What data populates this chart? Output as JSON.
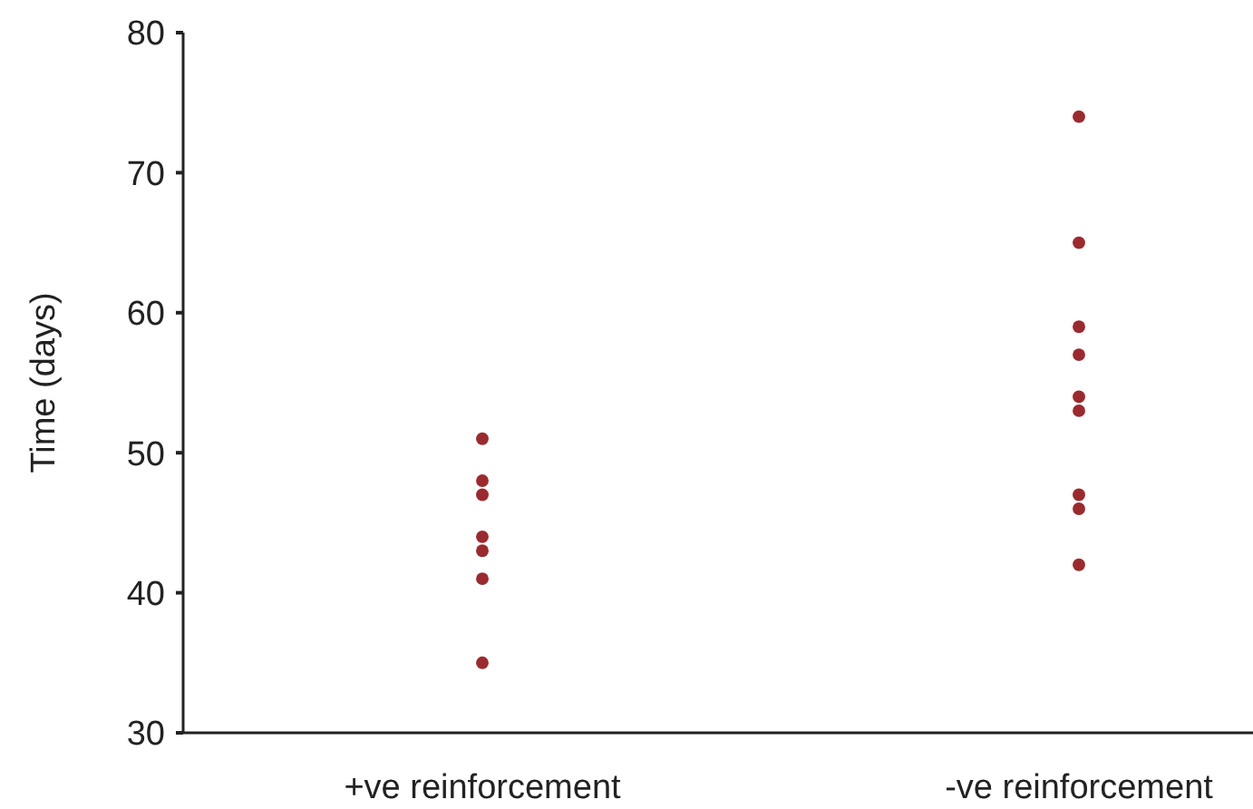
{
  "chart_data": {
    "type": "scatter",
    "ylabel": "Time (days)",
    "categories": [
      "+ve reinforcement",
      "-ve reinforcement"
    ],
    "series": [
      {
        "color": "#9b2a2e",
        "x": [
          "+ve reinforcement",
          "+ve reinforcement",
          "+ve reinforcement",
          "+ve reinforcement",
          "+ve reinforcement",
          "+ve reinforcement",
          "+ve reinforcement",
          "-ve reinforcement",
          "-ve reinforcement",
          "-ve reinforcement",
          "-ve reinforcement",
          "-ve reinforcement",
          "-ve reinforcement",
          "-ve reinforcement",
          "-ve reinforcement",
          "-ve reinforcement"
        ],
        "values": [
          51,
          48,
          47,
          44,
          43,
          41,
          35,
          74,
          65,
          59,
          57,
          54,
          53,
          47,
          46,
          42
        ]
      }
    ],
    "ylim": [
      30,
      80
    ],
    "yticks": [
      30,
      40,
      50,
      60,
      70,
      80
    ],
    "marker": "circle",
    "grid": false
  }
}
